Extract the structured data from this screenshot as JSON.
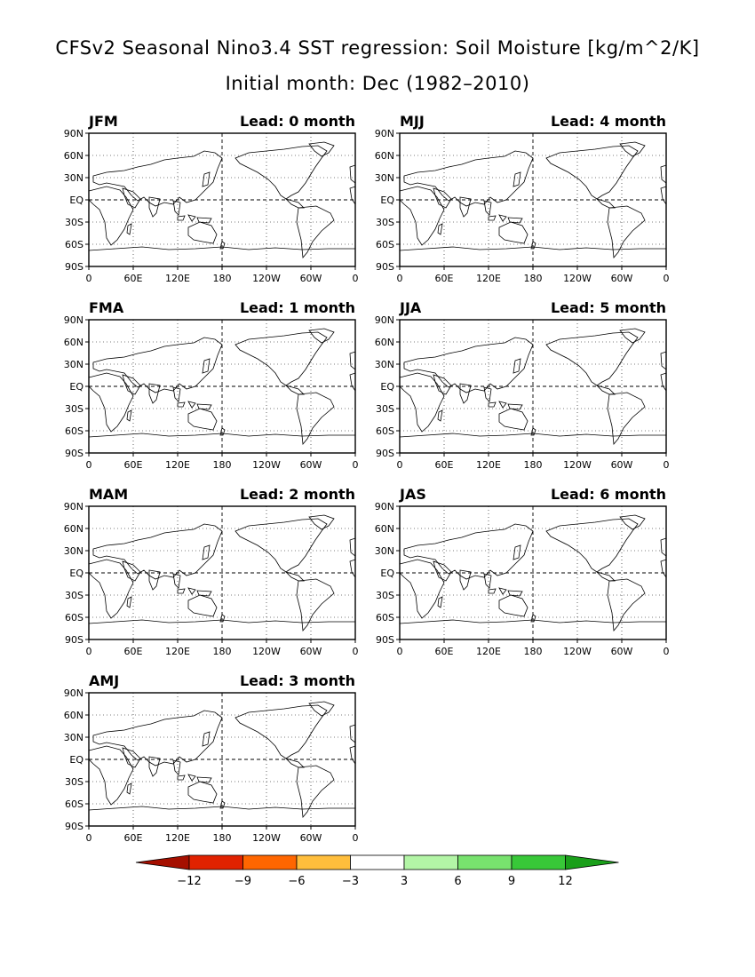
{
  "header": {
    "title": "CFSv2 Seasonal Nino3.4 SST regression: Soil Moisture [kg/m^2/K]",
    "subtitle": "Initial month: Dec (1982–2010)"
  },
  "axes": {
    "lat_labels": [
      "90N",
      "60N",
      "30N",
      "EQ",
      "30S",
      "60S",
      "90S"
    ],
    "lon_labels": [
      "0",
      "60E",
      "120E",
      "180",
      "120W",
      "60W",
      "0"
    ]
  },
  "panels": [
    {
      "season": "JFM",
      "lead": "Lead: 0 month"
    },
    {
      "season": "FMA",
      "lead": "Lead: 1 month"
    },
    {
      "season": "MAM",
      "lead": "Lead: 2 month"
    },
    {
      "season": "AMJ",
      "lead": "Lead: 3 month"
    },
    {
      "season": "MJJ",
      "lead": "Lead: 4 month"
    },
    {
      "season": "JJA",
      "lead": "Lead: 5 month"
    },
    {
      "season": "JAS",
      "lead": "Lead: 6 month"
    }
  ],
  "colorbar": {
    "ticks": [
      "−12",
      "−9",
      "−6",
      "−3",
      "3",
      "6",
      "9",
      "12"
    ],
    "colors": [
      "#a50f00",
      "#e12200",
      "#ff6600",
      "#ffbe3c",
      "#ffffff",
      "#b3f5a6",
      "#78e26e",
      "#38c838",
      "#1a9f1a"
    ]
  },
  "map_colors": {
    "dry_strong": "#a50f00",
    "dry_mid": "#e12200",
    "dry_weak": "#ff6600",
    "dry_light": "#ffbe3c",
    "wet_light": "#b3f5a6",
    "wet_mid": "#78e26e",
    "wet_strong": "#38c838",
    "land_neutral": "#ffffff"
  }
}
